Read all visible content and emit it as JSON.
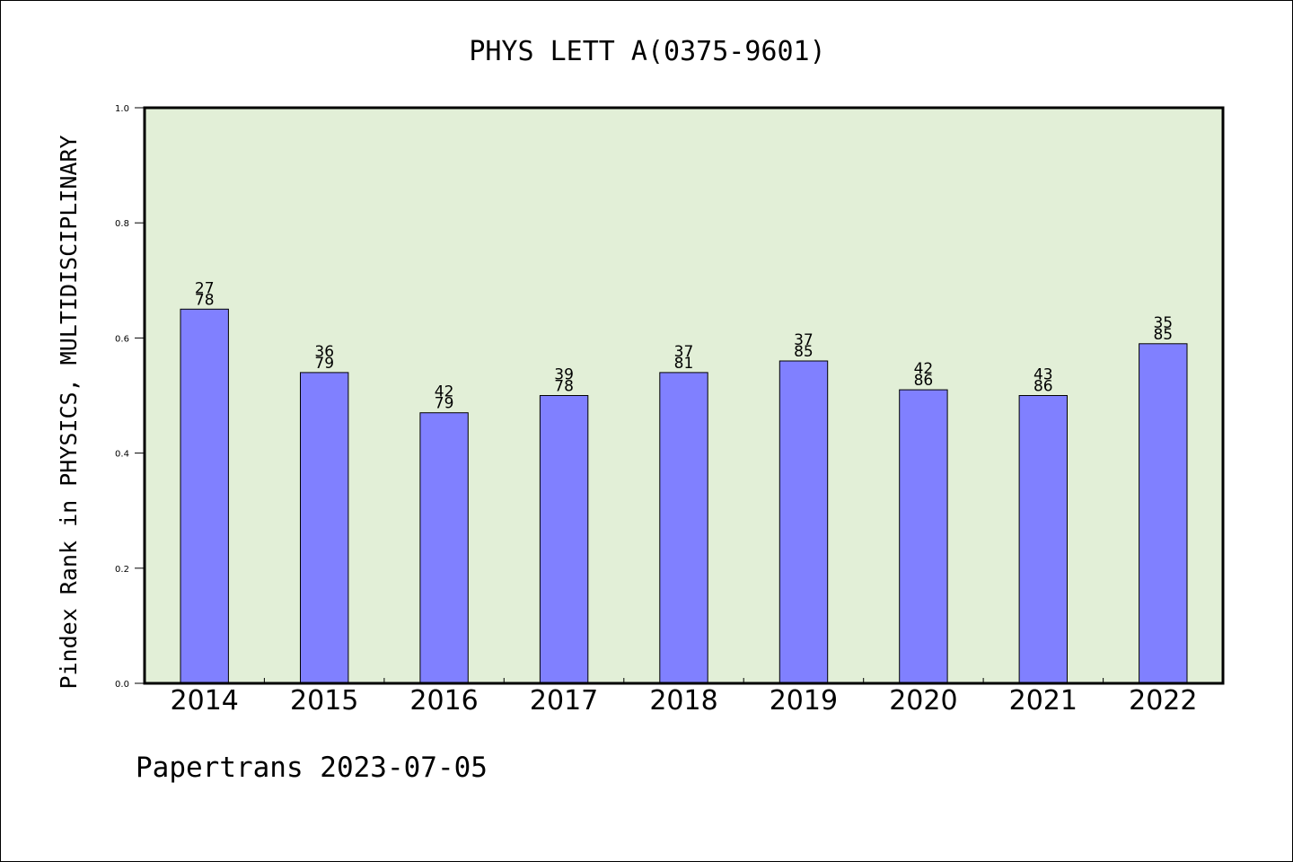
{
  "chart_data": {
    "type": "bar",
    "title": "PHYS LETT A(0375-9601)",
    "xlabel": "",
    "ylabel": "Pindex Rank in PHYSICS, MULTIDISCIPLINARY",
    "categories": [
      "2014",
      "2015",
      "2016",
      "2017",
      "2018",
      "2019",
      "2020",
      "2021",
      "2022"
    ],
    "values": [
      0.65,
      0.54,
      0.47,
      0.5,
      0.54,
      0.56,
      0.51,
      0.5,
      0.59
    ],
    "data_labels": [
      [
        "27",
        "78"
      ],
      [
        "36",
        "79"
      ],
      [
        "42",
        "79"
      ],
      [
        "39",
        "78"
      ],
      [
        "37",
        "81"
      ],
      [
        "37",
        "85"
      ],
      [
        "42",
        "86"
      ],
      [
        "43",
        "86"
      ],
      [
        "35",
        "85"
      ]
    ],
    "ylim": [
      0,
      1.0
    ],
    "yticks": [
      "0.0",
      "0.2",
      "0.4",
      "0.6",
      "0.8",
      "1.0"
    ],
    "grid": false,
    "legend": "none",
    "colors": {
      "bar": "#8080ff",
      "plot_background": "#e2efd7",
      "page_background": "#ffffff",
      "axis": "#000000"
    }
  },
  "footer": {
    "text": "Papertrans 2023-07-05"
  }
}
